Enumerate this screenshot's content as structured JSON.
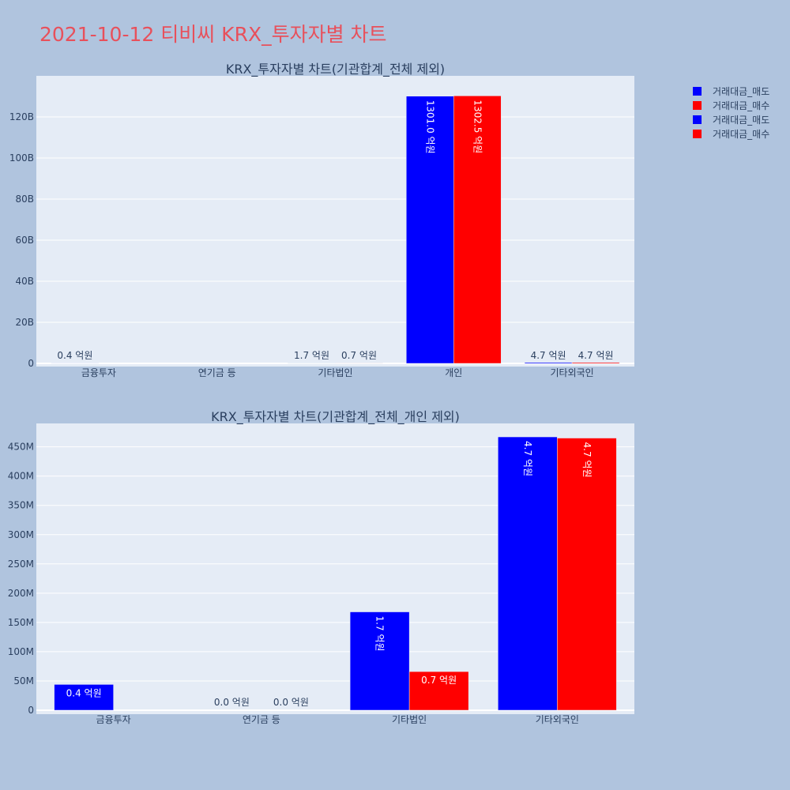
{
  "page": {
    "title": "2021-10-12 티비씨 KRX_투자자별 차트"
  },
  "legend": {
    "entries": [
      {
        "label": "거래대금_매도",
        "color": "#0000ff"
      },
      {
        "label": "거래대금_매수",
        "color": "#ff0000"
      },
      {
        "label": "거래대금_매도",
        "color": "#0000ff"
      },
      {
        "label": "거래대금_매수",
        "color": "#ff0000"
      }
    ]
  },
  "chart_data": [
    {
      "type": "bar",
      "title": "KRX_투자자별 차트(기관합계_전체 제외)",
      "categories": [
        "금융투자",
        "연기금 등",
        "기타법인",
        "개인",
        "기타외국인"
      ],
      "ylim": [
        0,
        140000000000
      ],
      "yticks": [
        0,
        20000000000,
        40000000000,
        60000000000,
        80000000000,
        100000000000,
        120000000000
      ],
      "ytick_labels": [
        "0",
        "20B",
        "40B",
        "60B",
        "80B",
        "100B",
        "120B"
      ],
      "grid": true,
      "series": [
        {
          "name": "거래대금_매도",
          "color": "#0000ff",
          "values": [
            44000000,
            0,
            168000000,
            130100000000,
            467000000
          ],
          "labels": [
            "0.4 억원",
            "",
            "1.7 억원",
            "1301.0 억원",
            "4.7 억원"
          ]
        },
        {
          "name": "거래대금_매수",
          "color": "#ff0000",
          "values": [
            0,
            0,
            66000000,
            130250000000,
            465000000
          ],
          "labels": [
            "",
            "",
            "0.7 억원",
            "1302.5 억원",
            "4.7 억원"
          ]
        }
      ]
    },
    {
      "type": "bar",
      "title": "KRX_투자자별 차트(기관합계_전체_개인 제외)",
      "categories": [
        "금융투자",
        "연기금 등",
        "기타법인",
        "기타외국인"
      ],
      "ylim": [
        0,
        490000000
      ],
      "yticks": [
        0,
        50000000,
        100000000,
        150000000,
        200000000,
        250000000,
        300000000,
        350000000,
        400000000,
        450000000
      ],
      "ytick_labels": [
        "0",
        "50M",
        "100M",
        "150M",
        "200M",
        "250M",
        "300M",
        "350M",
        "400M",
        "450M"
      ],
      "grid": true,
      "series": [
        {
          "name": "거래대금_매도",
          "color": "#0000ff",
          "values": [
            44000000,
            0,
            168000000,
            467000000
          ],
          "labels": [
            "0.4 억원",
            "0.0 억원",
            "1.7 억원",
            "4.7 억원"
          ]
        },
        {
          "name": "거래대금_매수",
          "color": "#ff0000",
          "values": [
            0,
            0,
            66000000,
            465000000
          ],
          "labels": [
            "",
            "0.0 억원",
            "0.7 억원",
            "4.7 억원"
          ]
        }
      ]
    }
  ]
}
